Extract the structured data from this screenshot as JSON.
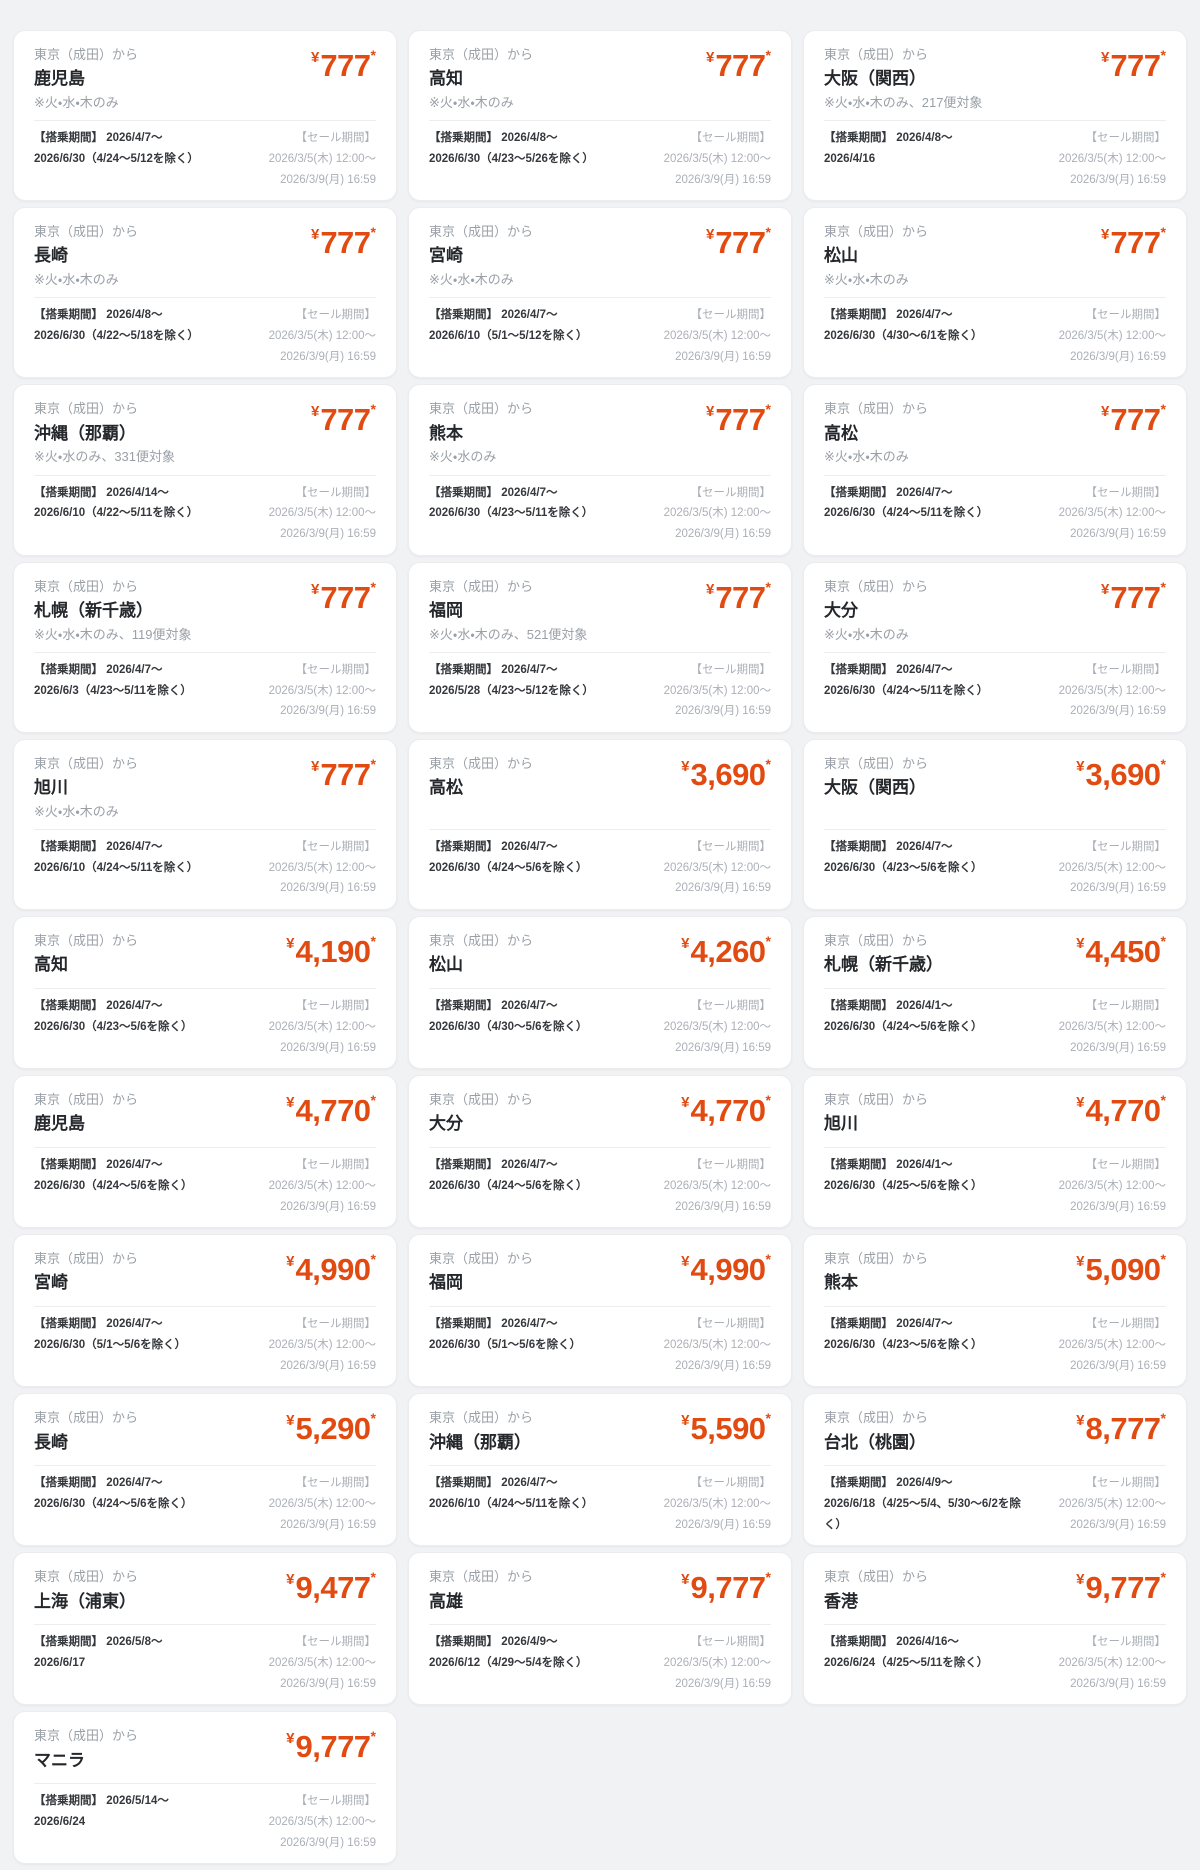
{
  "page": {
    "background_color": "#f1f2f4",
    "card_background_color": "#ffffff",
    "price_color": "#e14b11"
  },
  "common": {
    "origin": "東京（成田）から",
    "currency_symbol": "¥",
    "price_asterisk": "*",
    "sale_line1": "【セール期間】2026/3/5(木) 12:00～",
    "sale_line2": "2026/3/9(月) 16:59"
  },
  "cards": [
    {
      "destination": "鹿児島",
      "note": "※火・水・木のみ",
      "price": "777",
      "boarding_line1": "【搭乗期間】 2026/4/7～",
      "boarding_line2": "2026/6/30（4/24～5/12を除く）"
    },
    {
      "destination": "高知",
      "note": "※火・水・木のみ",
      "price": "777",
      "boarding_line1": "【搭乗期間】 2026/4/8～",
      "boarding_line2": "2026/6/30（4/23～5/26を除く）"
    },
    {
      "destination": "大阪（関西）",
      "note": "※火・水・木のみ、217便対象",
      "price": "777",
      "boarding_line1": "【搭乗期間】 2026/4/8～",
      "boarding_line2": "2026/4/16"
    },
    {
      "destination": "長崎",
      "note": "※火・水・木のみ",
      "price": "777",
      "boarding_line1": "【搭乗期間】 2026/4/8～",
      "boarding_line2": "2026/6/30（4/22～5/18を除く）"
    },
    {
      "destination": "宮崎",
      "note": "※火・水・木のみ",
      "price": "777",
      "boarding_line1": "【搭乗期間】 2026/4/7～",
      "boarding_line2": "2026/6/10（5/1～5/12を除く）"
    },
    {
      "destination": "松山",
      "note": "※火・水・木のみ",
      "price": "777",
      "boarding_line1": "【搭乗期間】 2026/4/7～",
      "boarding_line2": "2026/6/30（4/30～6/1を除く）"
    },
    {
      "destination": "沖縄（那覇）",
      "note": "※火・水のみ、331便対象",
      "price": "777",
      "boarding_line1": "【搭乗期間】 2026/4/14～",
      "boarding_line2": "2026/6/10（4/22～5/11を除く）"
    },
    {
      "destination": "熊本",
      "note": "※火・水のみ",
      "price": "777",
      "boarding_line1": "【搭乗期間】 2026/4/7～",
      "boarding_line2": "2026/6/30（4/23～5/11を除く）"
    },
    {
      "destination": "高松",
      "note": "※火・水・木のみ",
      "price": "777",
      "boarding_line1": "【搭乗期間】 2026/4/7～",
      "boarding_line2": "2026/6/30（4/24～5/11を除く）"
    },
    {
      "destination": "札幌（新千歳）",
      "note": "※火・水・木のみ、119便対象",
      "price": "777",
      "boarding_line1": "【搭乗期間】 2026/4/7～",
      "boarding_line2": "2026/6/3（4/23～5/11を除く）"
    },
    {
      "destination": "福岡",
      "note": "※火・水・木のみ、521便対象",
      "price": "777",
      "boarding_line1": "【搭乗期間】 2026/4/7～",
      "boarding_line2": "2026/5/28（4/23～5/12を除く）"
    },
    {
      "destination": "大分",
      "note": "※火・水・木のみ",
      "price": "777",
      "boarding_line1": "【搭乗期間】 2026/4/7～",
      "boarding_line2": "2026/6/30（4/24～5/11を除く）"
    },
    {
      "destination": "旭川",
      "note": "※火・水・木のみ",
      "price": "777",
      "boarding_line1": "【搭乗期間】 2026/4/7～",
      "boarding_line2": "2026/6/10（4/24～5/11を除く）"
    },
    {
      "destination": "高松",
      "note": "",
      "price": "3,690",
      "boarding_line1": "【搭乗期間】 2026/4/7～",
      "boarding_line2": "2026/6/30（4/24～5/6を除く）"
    },
    {
      "destination": "大阪（関西）",
      "note": "",
      "price": "3,690",
      "boarding_line1": "【搭乗期間】 2026/4/7～",
      "boarding_line2": "2026/6/30（4/23～5/6を除く）"
    },
    {
      "destination": "高知",
      "note": "",
      "price": "4,190",
      "boarding_line1": "【搭乗期間】 2026/4/7～",
      "boarding_line2": "2026/6/30（4/23～5/6を除く）"
    },
    {
      "destination": "松山",
      "note": "",
      "price": "4,260",
      "boarding_line1": "【搭乗期間】 2026/4/7～",
      "boarding_line2": "2026/6/30（4/30～5/6を除く）"
    },
    {
      "destination": "札幌（新千歳）",
      "note": "",
      "price": "4,450",
      "boarding_line1": "【搭乗期間】 2026/4/1～",
      "boarding_line2": "2026/6/30（4/24～5/6を除く）"
    },
    {
      "destination": "鹿児島",
      "note": "",
      "price": "4,770",
      "boarding_line1": "【搭乗期間】 2026/4/7～",
      "boarding_line2": "2026/6/30（4/24～5/6を除く）"
    },
    {
      "destination": "大分",
      "note": "",
      "price": "4,770",
      "boarding_line1": "【搭乗期間】 2026/4/7～",
      "boarding_line2": "2026/6/30（4/24～5/6を除く）"
    },
    {
      "destination": "旭川",
      "note": "",
      "price": "4,770",
      "boarding_line1": "【搭乗期間】 2026/4/1～",
      "boarding_line2": "2026/6/30（4/25～5/6を除く）"
    },
    {
      "destination": "宮崎",
      "note": "",
      "price": "4,990",
      "boarding_line1": "【搭乗期間】 2026/4/7～",
      "boarding_line2": "2026/6/30（5/1～5/6を除く）"
    },
    {
      "destination": "福岡",
      "note": "",
      "price": "4,990",
      "boarding_line1": "【搭乗期間】 2026/4/7～",
      "boarding_line2": "2026/6/30（5/1～5/6を除く）"
    },
    {
      "destination": "熊本",
      "note": "",
      "price": "5,090",
      "boarding_line1": "【搭乗期間】 2026/4/7～",
      "boarding_line2": "2026/6/30（4/23～5/6を除く）"
    },
    {
      "destination": "長崎",
      "note": "",
      "price": "5,290",
      "boarding_line1": "【搭乗期間】 2026/4/7～",
      "boarding_line2": "2026/6/30（4/24～5/6を除く）"
    },
    {
      "destination": "沖縄（那覇）",
      "note": "",
      "price": "5,590",
      "boarding_line1": "【搭乗期間】 2026/4/7～",
      "boarding_line2": "2026/6/10（4/24～5/11を除く）"
    },
    {
      "destination": "台北（桃園）",
      "note": "",
      "price": "8,777",
      "boarding_line1": "【搭乗期間】 2026/4/9～",
      "boarding_line2": "2026/6/18（4/25～5/4、5/30～6/2を除く）"
    },
    {
      "destination": "上海（浦東）",
      "note": "",
      "price": "9,477",
      "boarding_line1": "【搭乗期間】 2026/5/8～",
      "boarding_line2": "2026/6/17"
    },
    {
      "destination": "高雄",
      "note": "",
      "price": "9,777",
      "boarding_line1": "【搭乗期間】 2026/4/9～",
      "boarding_line2": "2026/6/12（4/29～5/4を除く）"
    },
    {
      "destination": "香港",
      "note": "",
      "price": "9,777",
      "boarding_line1": "【搭乗期間】 2026/4/16～",
      "boarding_line2": "2026/6/24（4/25～5/11を除く）"
    },
    {
      "destination": "マニラ",
      "note": "",
      "price": "9,777",
      "boarding_line1": "【搭乗期間】 2026/5/14～",
      "boarding_line2": "2026/6/24"
    }
  ]
}
